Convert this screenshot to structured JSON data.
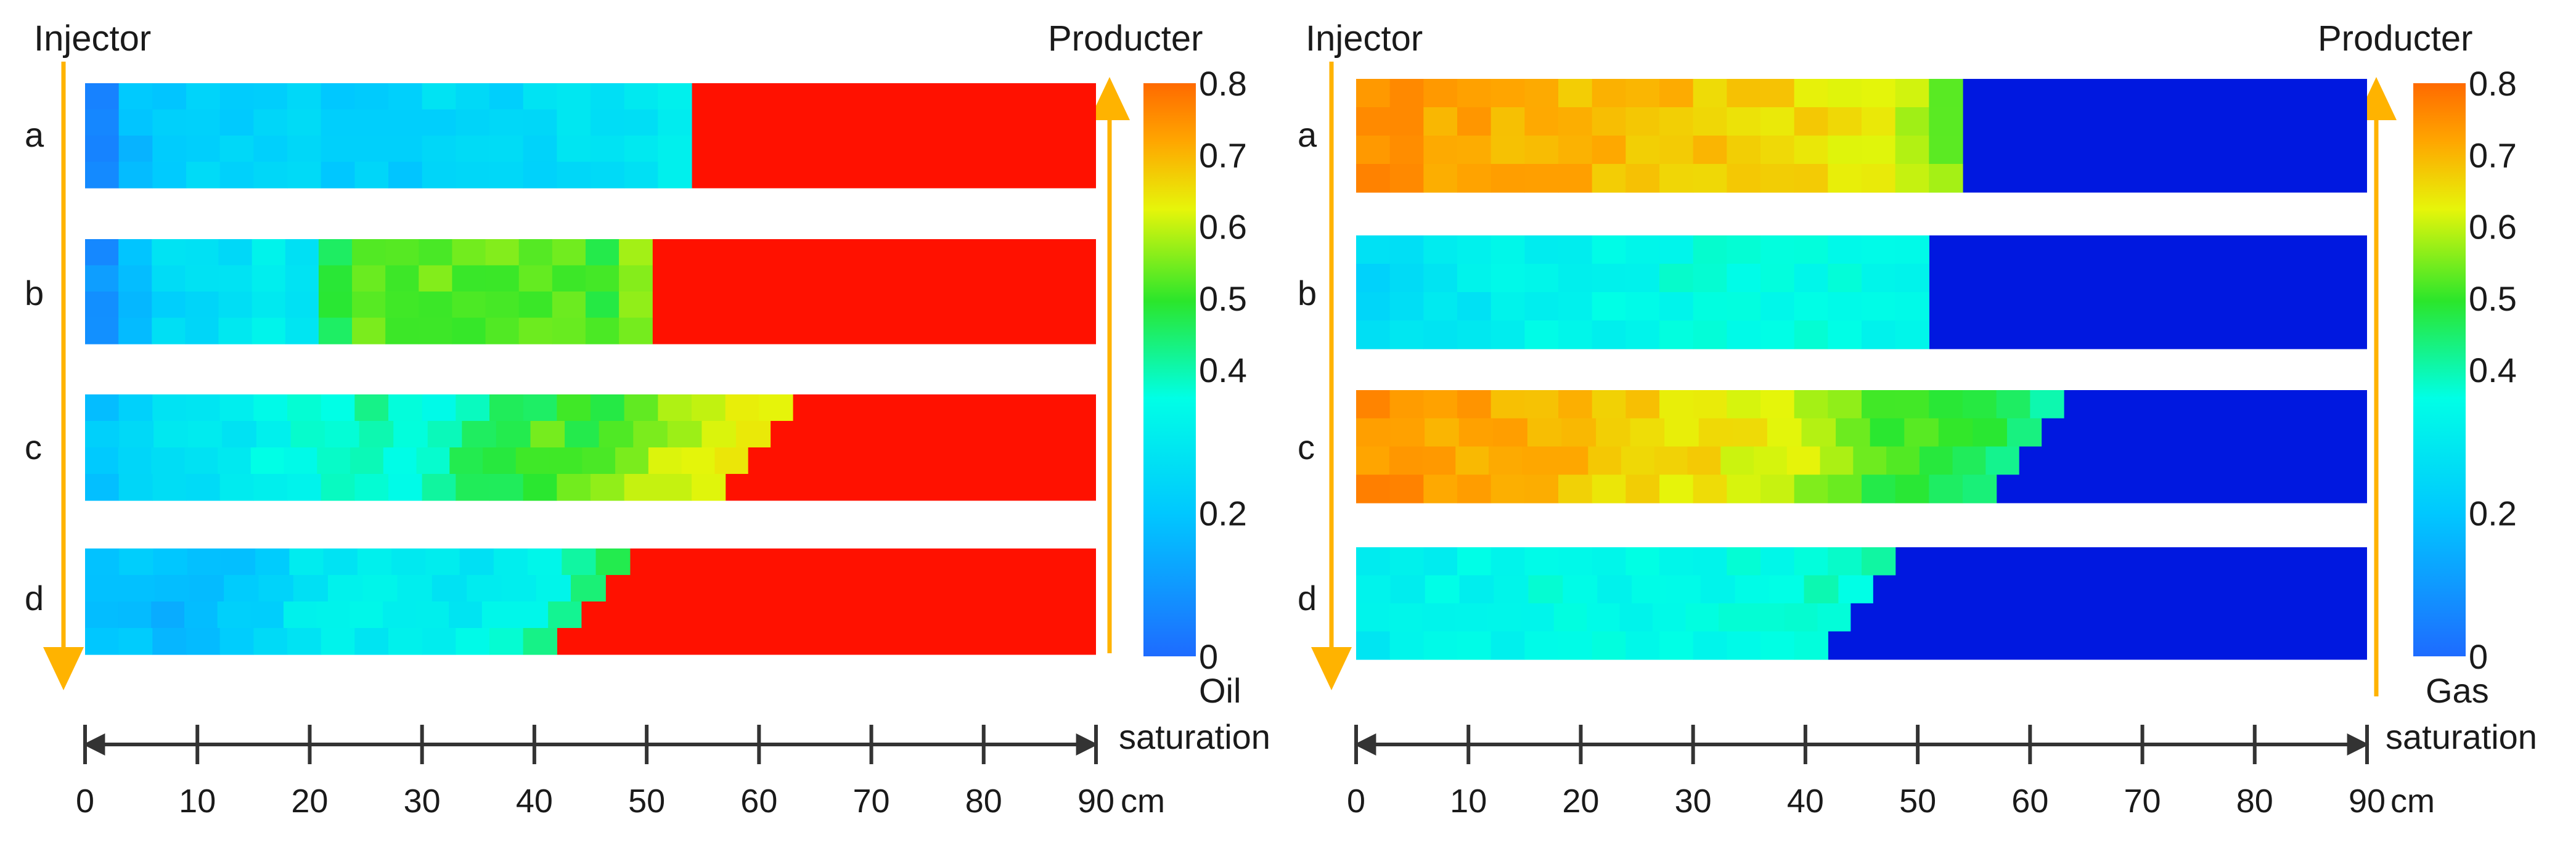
{
  "panels": [
    {
      "injector_label": "Injector",
      "producer_label": "Producter",
      "row_labels": [
        "a",
        "b",
        "c",
        "d"
      ],
      "colorbar_title_line1": "Oil",
      "colorbar_title_line2": "saturation",
      "colorbar_ticks": [
        "0",
        "0.2",
        "0.4",
        "0.5",
        "0.6",
        "0.7",
        "0.8"
      ],
      "axis_ticks": [
        "0",
        "10",
        "20",
        "30",
        "40",
        "50",
        "60",
        "70",
        "80",
        "90"
      ],
      "axis_unit": "cm"
    },
    {
      "injector_label": "Injector",
      "producer_label": "Producter",
      "row_labels": [
        "a",
        "b",
        "c",
        "d"
      ],
      "colorbar_title_line1": "Gas",
      "colorbar_title_line2": "saturation",
      "colorbar_ticks": [
        "0",
        "0.2",
        "0.4",
        "0.5",
        "0.6",
        "0.7",
        "0.8"
      ],
      "axis_ticks": [
        "0",
        "10",
        "20",
        "30",
        "40",
        "50",
        "60",
        "70",
        "80",
        "90"
      ],
      "axis_unit": "cm"
    }
  ],
  "colors": {
    "arrow": "#FFB300",
    "scale_arrow": "#333333",
    "colormap": [
      "#1E6BFF",
      "#00C8FF",
      "#00FFE6",
      "#2BE62B",
      "#E6F50A",
      "#FFA500",
      "#FF6A00"
    ],
    "oil_swept_front": "#FF1100",
    "gas_unswept": "#0018E0"
  },
  "chart_data": [
    {
      "type": "heatmap",
      "title": "",
      "quantity": "Oil saturation",
      "xlabel": "cm",
      "xlim": [
        0,
        90
      ],
      "color_scale": {
        "min": 0,
        "max": 0.8,
        "ticks": [
          0,
          0.2,
          0.4,
          0.5,
          0.6,
          0.7,
          0.8
        ]
      },
      "ncols": 30,
      "nrows": 4,
      "series": [
        {
          "name": "a",
          "front_top_cm": 54,
          "front_bottom_cm": 54,
          "behind_front": 0.8,
          "profile": [
            0.08,
            0.18,
            0.22,
            0.23,
            0.22,
            0.22,
            0.24,
            0.22,
            0.22,
            0.21,
            0.22,
            0.25,
            0.23,
            0.24,
            0.25,
            0.27,
            0.27,
            0.27,
            0.32,
            0.5
          ]
        },
        {
          "name": "b",
          "front_top_cm": 50.5,
          "front_bottom_cm": 50.5,
          "behind_front": 0.8,
          "profile": [
            0.08,
            0.18,
            0.25,
            0.25,
            0.27,
            0.3,
            0.3,
            0.48,
            0.53,
            0.53,
            0.53,
            0.52,
            0.53,
            0.52,
            0.53,
            0.5,
            0.55,
            0.62
          ]
        },
        {
          "name": "c",
          "front_top_cm": 63,
          "front_bottom_cm": 57,
          "behind_front": 0.8,
          "profile": [
            0.2,
            0.25,
            0.27,
            0.28,
            0.3,
            0.33,
            0.35,
            0.37,
            0.4,
            0.38,
            0.37,
            0.4,
            0.45,
            0.48,
            0.52,
            0.5,
            0.53,
            0.56,
            0.6,
            0.62,
            0.65,
            0.7
          ]
        },
        {
          "name": "d",
          "front_top_cm": 48.5,
          "front_bottom_cm": 42,
          "behind_front": 0.8,
          "profile": [
            0.2,
            0.2,
            0.17,
            0.18,
            0.2,
            0.23,
            0.3,
            0.3,
            0.32,
            0.3,
            0.3,
            0.3,
            0.32,
            0.35,
            0.42,
            0.48
          ]
        }
      ]
    },
    {
      "type": "heatmap",
      "title": "",
      "quantity": "Gas saturation",
      "xlabel": "cm",
      "xlim": [
        0,
        90
      ],
      "color_scale": {
        "min": 0,
        "max": 0.8,
        "ticks": [
          0,
          0.2,
          0.4,
          0.5,
          0.6,
          0.7,
          0.8
        ]
      },
      "ncols": 30,
      "nrows": 4,
      "series": [
        {
          "name": "a",
          "front_top_cm": 54,
          "front_bottom_cm": 54,
          "behind_front": 0,
          "profile": [
            0.75,
            0.73,
            0.72,
            0.72,
            0.71,
            0.7,
            0.7,
            0.7,
            0.69,
            0.69,
            0.68,
            0.67,
            0.66,
            0.65,
            0.63,
            0.61,
            0.58,
            0.55
          ]
        },
        {
          "name": "b",
          "front_top_cm": 51,
          "front_bottom_cm": 51,
          "behind_front": 0,
          "profile": [
            0.25,
            0.27,
            0.28,
            0.3,
            0.32,
            0.33,
            0.33,
            0.34,
            0.34,
            0.35,
            0.35,
            0.35,
            0.35,
            0.36,
            0.36,
            0.35,
            0.34
          ]
        },
        {
          "name": "c",
          "front_top_cm": 63,
          "front_bottom_cm": 57,
          "behind_front": 0,
          "profile": [
            0.75,
            0.74,
            0.73,
            0.72,
            0.7,
            0.7,
            0.69,
            0.67,
            0.66,
            0.65,
            0.65,
            0.63,
            0.62,
            0.6,
            0.57,
            0.52,
            0.5,
            0.5,
            0.48,
            0.45,
            0.42
          ]
        },
        {
          "name": "d",
          "front_top_cm": 48,
          "front_bottom_cm": 42,
          "behind_front": 0,
          "profile": [
            0.3,
            0.32,
            0.33,
            0.34,
            0.34,
            0.35,
            0.35,
            0.35,
            0.35,
            0.35,
            0.35,
            0.36,
            0.36,
            0.37,
            0.37,
            0.38
          ]
        }
      ]
    }
  ]
}
